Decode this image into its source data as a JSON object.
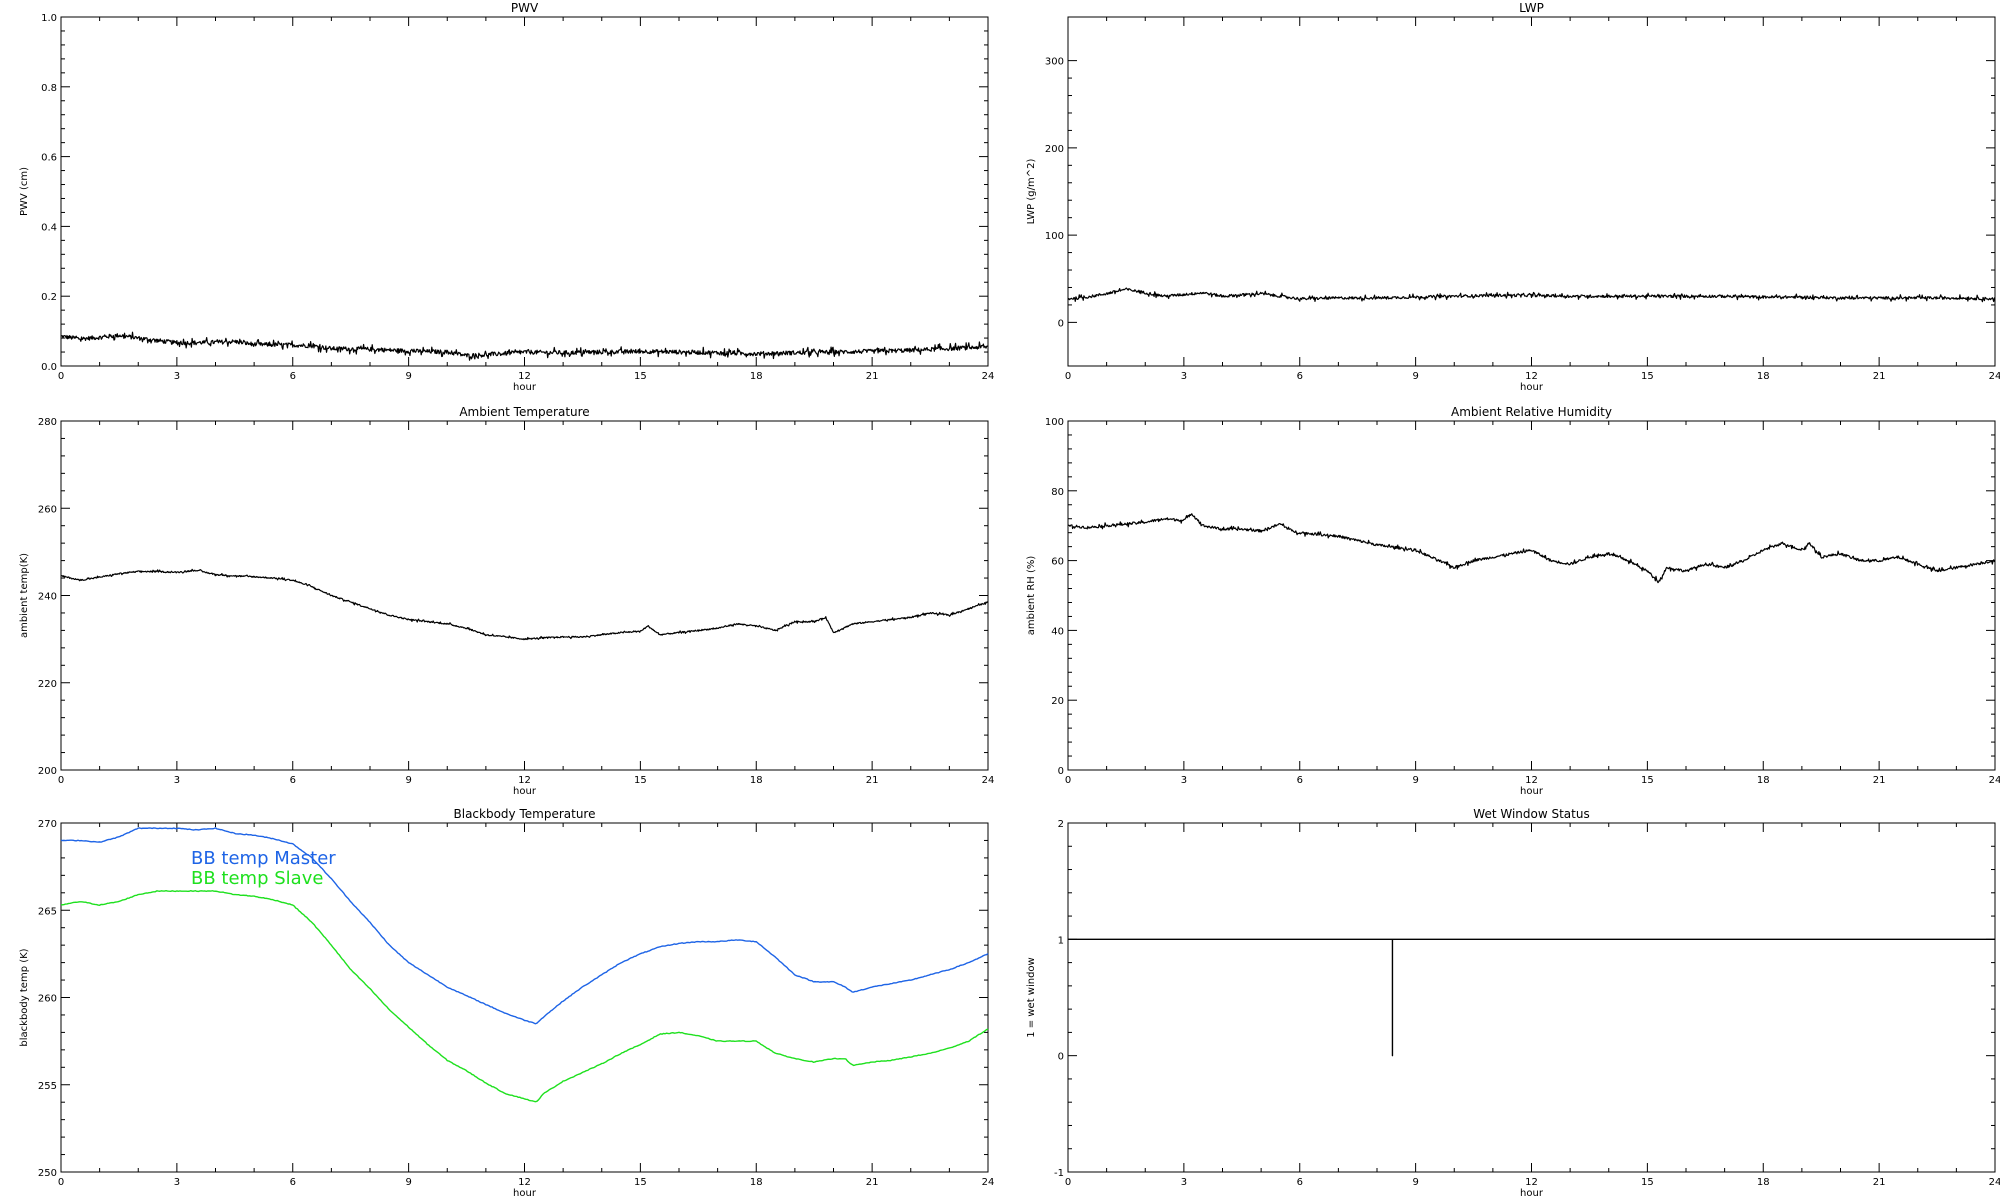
{
  "chart_data": [
    {
      "type": "line",
      "title": "PWV",
      "xlabel": "hour",
      "ylabel": "PWV (cm)",
      "xlim": [
        0,
        24
      ],
      "ylim": [
        0,
        1.0
      ],
      "xticks": [
        "0",
        "3",
        "6",
        "9",
        "12",
        "15",
        "18",
        "21",
        "24"
      ],
      "yticks": [
        "0.0",
        "0.2",
        "0.4",
        "0.6",
        "0.8",
        "1.0"
      ],
      "series": [
        {
          "color": "#000000",
          "noise": 0.006,
          "x": [
            0,
            0.5,
            1,
            1.5,
            2,
            3,
            4,
            4.5,
            5,
            6,
            6.5,
            7,
            8,
            9,
            10,
            10.5,
            11,
            12,
            13,
            14,
            15,
            16,
            17,
            18,
            19,
            20,
            21,
            22,
            23,
            24
          ],
          "y": [
            0.085,
            0.078,
            0.082,
            0.088,
            0.08,
            0.066,
            0.068,
            0.07,
            0.062,
            0.06,
            0.058,
            0.05,
            0.048,
            0.043,
            0.04,
            0.03,
            0.032,
            0.04,
            0.038,
            0.04,
            0.042,
            0.04,
            0.038,
            0.035,
            0.038,
            0.04,
            0.042,
            0.045,
            0.05,
            0.055
          ]
        }
      ]
    },
    {
      "type": "line",
      "title": "LWP",
      "xlabel": "hour",
      "ylabel": "LWP (g/m^2)",
      "xlim": [
        0,
        24
      ],
      "ylim": [
        -50,
        350
      ],
      "xticks": [
        "0",
        "3",
        "6",
        "9",
        "12",
        "15",
        "18",
        "21",
        "24"
      ],
      "yticks": [
        "0",
        "100",
        "200",
        "300"
      ],
      "series": [
        {
          "color": "#000000",
          "noise": 1.5,
          "x": [
            0,
            0.5,
            1,
            1.5,
            2,
            2.5,
            3,
            3.5,
            4,
            5,
            5.5,
            6,
            7,
            8,
            9,
            10,
            11,
            12,
            13,
            14,
            15,
            16,
            17,
            18,
            19,
            20,
            21,
            22,
            23,
            24
          ],
          "y": [
            27,
            29,
            33,
            38,
            34,
            30,
            32,
            34,
            30,
            33,
            30,
            27,
            28,
            28,
            29,
            30,
            31,
            31,
            30,
            30,
            30,
            30,
            30,
            29,
            29,
            28,
            28,
            28,
            28,
            27
          ]
        }
      ]
    },
    {
      "type": "line",
      "title": "Ambient Temperature",
      "xlabel": "hour",
      "ylabel": "ambient temp(K)",
      "xlim": [
        0,
        24
      ],
      "ylim": [
        200,
        280
      ],
      "xticks": [
        "0",
        "3",
        "6",
        "9",
        "12",
        "15",
        "18",
        "21",
        "24"
      ],
      "yticks": [
        "200",
        "220",
        "240",
        "260",
        "280"
      ],
      "series": [
        {
          "color": "#000000",
          "noise": 0.15,
          "x": [
            0,
            0.5,
            1,
            1.5,
            2,
            2.5,
            3,
            3.5,
            4,
            4.5,
            5,
            5.5,
            6,
            6.5,
            7,
            7.5,
            8,
            8.5,
            9,
            9.5,
            10,
            10.5,
            11,
            11.5,
            12,
            12.5,
            13,
            13.5,
            14,
            14.5,
            15,
            15.2,
            15.5,
            16,
            16.5,
            17,
            17.5,
            18,
            18.5,
            19,
            19.5,
            19.8,
            20,
            20.5,
            21,
            21.5,
            22,
            22.5,
            23,
            23.5,
            24
          ],
          "y": [
            244.5,
            243.5,
            244.2,
            245,
            245.5,
            245.5,
            245.3,
            245.8,
            244.8,
            244.5,
            244.3,
            244,
            243.5,
            242,
            240,
            238.5,
            237,
            235.5,
            234.5,
            234,
            233.5,
            232.5,
            231,
            230.5,
            230,
            230.3,
            230.5,
            230.5,
            231,
            231.5,
            231.8,
            233,
            231,
            231.5,
            232,
            232.5,
            233.5,
            233,
            232,
            234,
            234,
            235,
            231.5,
            233.5,
            234,
            234.5,
            235,
            236,
            235.5,
            237,
            238.5
          ]
        }
      ]
    },
    {
      "type": "line",
      "title": "Ambient Relative Humidity",
      "xlabel": "hour",
      "ylabel": "ambient RH (%)",
      "xlim": [
        0,
        24
      ],
      "ylim": [
        0,
        100
      ],
      "xticks": [
        "0",
        "3",
        "6",
        "9",
        "12",
        "15",
        "18",
        "21",
        "24"
      ],
      "yticks": [
        "0",
        "20",
        "40",
        "60",
        "80",
        "100"
      ],
      "series": [
        {
          "color": "#000000",
          "noise": 0.35,
          "x": [
            0,
            0.5,
            1,
            1.5,
            2,
            2.5,
            3,
            3.2,
            3.5,
            4,
            4.5,
            5,
            5.5,
            5.8,
            6,
            7,
            8,
            9,
            10,
            10.5,
            11,
            11.5,
            12,
            12.5,
            13,
            13.5,
            14,
            14.5,
            15,
            15.3,
            15.5,
            16,
            16.5,
            17,
            17.5,
            18,
            18.5,
            19,
            19.2,
            19.5,
            20,
            20.5,
            21,
            21.5,
            22,
            22.5,
            23,
            23.5,
            24
          ],
          "y": [
            70,
            69.5,
            70,
            70.5,
            71,
            72,
            71.5,
            73.5,
            70,
            69,
            69,
            68.5,
            70.5,
            68.5,
            68,
            67,
            64.5,
            63,
            58,
            60,
            61,
            62,
            63,
            60,
            59,
            61,
            62,
            60,
            57,
            54,
            58,
            57,
            59,
            58,
            60,
            63,
            65,
            63,
            65,
            61,
            62,
            60,
            60,
            61,
            59,
            57,
            58,
            59,
            60
          ]
        }
      ]
    },
    {
      "type": "line",
      "title": "Blackbody Temperature",
      "xlabel": "hour",
      "ylabel": "blackbody temp (K)",
      "xlim": [
        0,
        24
      ],
      "ylim": [
        250,
        270
      ],
      "xticks": [
        "0",
        "3",
        "6",
        "9",
        "12",
        "15",
        "18",
        "21",
        "24"
      ],
      "yticks": [
        "250",
        "255",
        "260",
        "265",
        "270"
      ],
      "series": [
        {
          "name": "BB temp Master",
          "color": "#1e64e6",
          "noise": 0.0,
          "x": [
            0,
            0.5,
            1,
            1.5,
            2,
            2.5,
            3,
            3.5,
            4,
            4.5,
            5,
            5.5,
            6,
            6.5,
            7,
            7.5,
            8,
            8.5,
            9,
            9.5,
            10,
            10.5,
            11,
            11.5,
            12,
            12.3,
            12.5,
            13,
            13.5,
            14,
            14.5,
            15,
            15.5,
            16,
            16.5,
            17,
            17.5,
            18,
            18.5,
            19,
            19.5,
            20,
            20.3,
            20.5,
            21,
            21.5,
            22,
            22.5,
            23,
            23.5,
            24
          ],
          "y": [
            269,
            269,
            268.9,
            269.2,
            269.7,
            269.7,
            269.7,
            269.6,
            269.7,
            269.4,
            269.3,
            269.1,
            268.8,
            268,
            266.8,
            265.5,
            264.3,
            263,
            262,
            261.3,
            260.6,
            260.1,
            259.6,
            259.1,
            258.7,
            258.5,
            258.9,
            259.8,
            260.6,
            261.3,
            262,
            262.5,
            262.9,
            263.1,
            263.2,
            263.2,
            263.3,
            263.2,
            262.3,
            261.3,
            260.9,
            260.9,
            260.6,
            260.3,
            260.6,
            260.8,
            261,
            261.3,
            261.6,
            262,
            262.5
          ]
        },
        {
          "name": "BB temp Slave",
          "color": "#1ee01e",
          "noise": 0.0,
          "x": [
            0,
            0.5,
            1,
            1.5,
            2,
            2.5,
            3,
            3.5,
            4,
            4.5,
            5,
            5.5,
            6,
            6.5,
            7,
            7.5,
            8,
            8.5,
            9,
            9.5,
            10,
            10.5,
            11,
            11.5,
            12,
            12.3,
            12.5,
            13,
            13.5,
            14,
            14.5,
            15,
            15.5,
            16,
            16.5,
            17,
            17.5,
            18,
            18.5,
            19,
            19.5,
            20,
            20.3,
            20.5,
            21,
            21.5,
            22,
            22.5,
            23,
            23.5,
            24
          ],
          "y": [
            265.3,
            265.5,
            265.3,
            265.5,
            265.9,
            266.1,
            266.1,
            266.1,
            266.1,
            265.9,
            265.8,
            265.6,
            265.3,
            264.3,
            263,
            261.6,
            260.5,
            259.3,
            258.3,
            257.3,
            256.4,
            255.8,
            255.1,
            254.5,
            254.2,
            254,
            254.5,
            255.2,
            255.7,
            256.2,
            256.8,
            257.3,
            257.9,
            258,
            257.8,
            257.5,
            257.5,
            257.5,
            256.8,
            256.5,
            256.3,
            256.5,
            256.5,
            256.1,
            256.3,
            256.4,
            256.6,
            256.8,
            257.1,
            257.5,
            258.2
          ]
        }
      ]
    },
    {
      "type": "line",
      "title": "Wet Window Status",
      "xlabel": "hour",
      "ylabel": "1 = wet window",
      "xlim": [
        0,
        24
      ],
      "ylim": [
        -1,
        2
      ],
      "xticks": [
        "0",
        "3",
        "6",
        "9",
        "12",
        "15",
        "18",
        "21",
        "24"
      ],
      "yticks": [
        "-1",
        "0",
        "1",
        "2"
      ],
      "series": [
        {
          "color": "#000000",
          "noise": 0,
          "x": [
            0,
            8.4,
            8.4,
            8.4,
            24
          ],
          "y": [
            1,
            1,
            0,
            1,
            1
          ]
        }
      ]
    }
  ]
}
